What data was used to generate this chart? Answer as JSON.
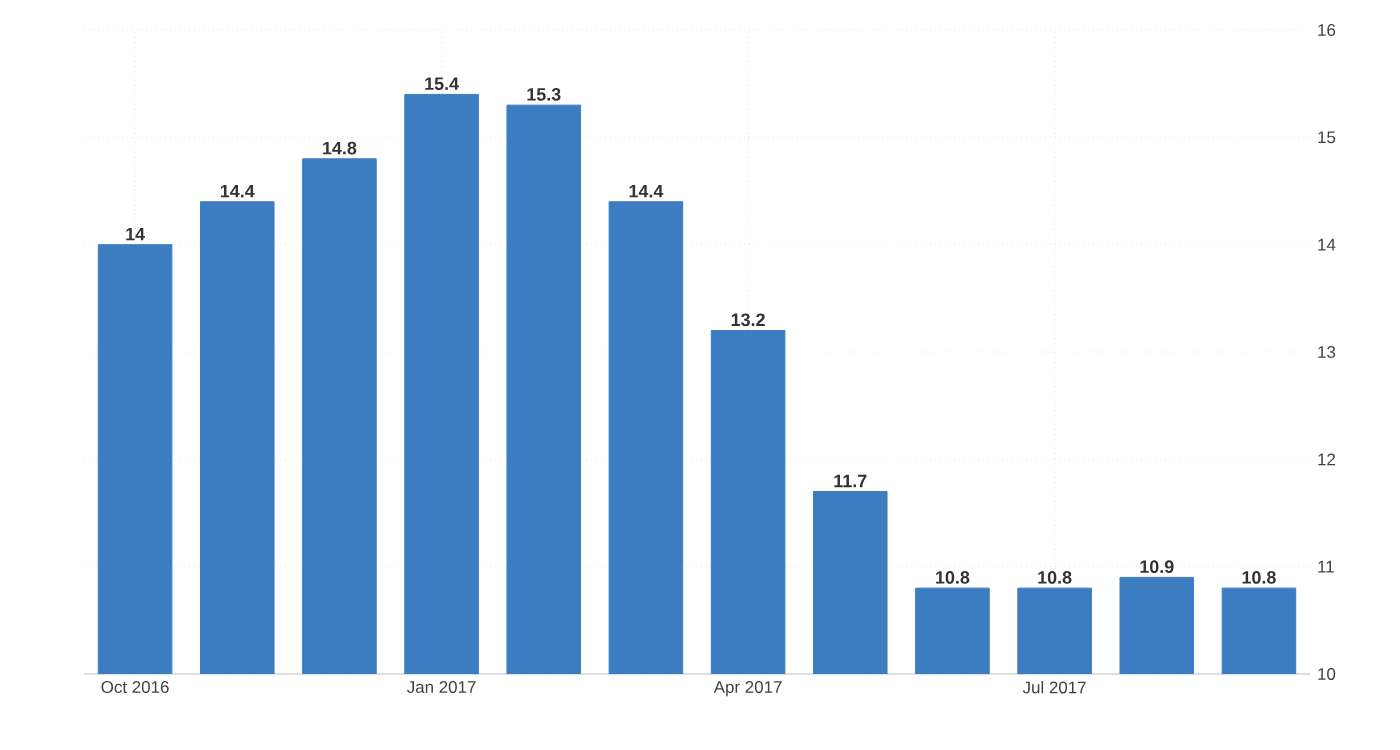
{
  "chart_data": {
    "type": "bar",
    "categories": [
      "Oct 2016",
      null,
      null,
      "Jan 2017",
      null,
      null,
      "Apr 2017",
      null,
      null,
      "Jul 2017",
      null,
      null
    ],
    "values": [
      14,
      14.4,
      14.8,
      15.4,
      15.3,
      14.4,
      13.2,
      11.7,
      10.8,
      10.8,
      10.9,
      10.8
    ],
    "color": "#3b7dc0",
    "ylim": [
      10,
      16
    ],
    "yticks": [
      10,
      11,
      12,
      13,
      14,
      15,
      16
    ],
    "grid": true,
    "data_labels": true
  }
}
